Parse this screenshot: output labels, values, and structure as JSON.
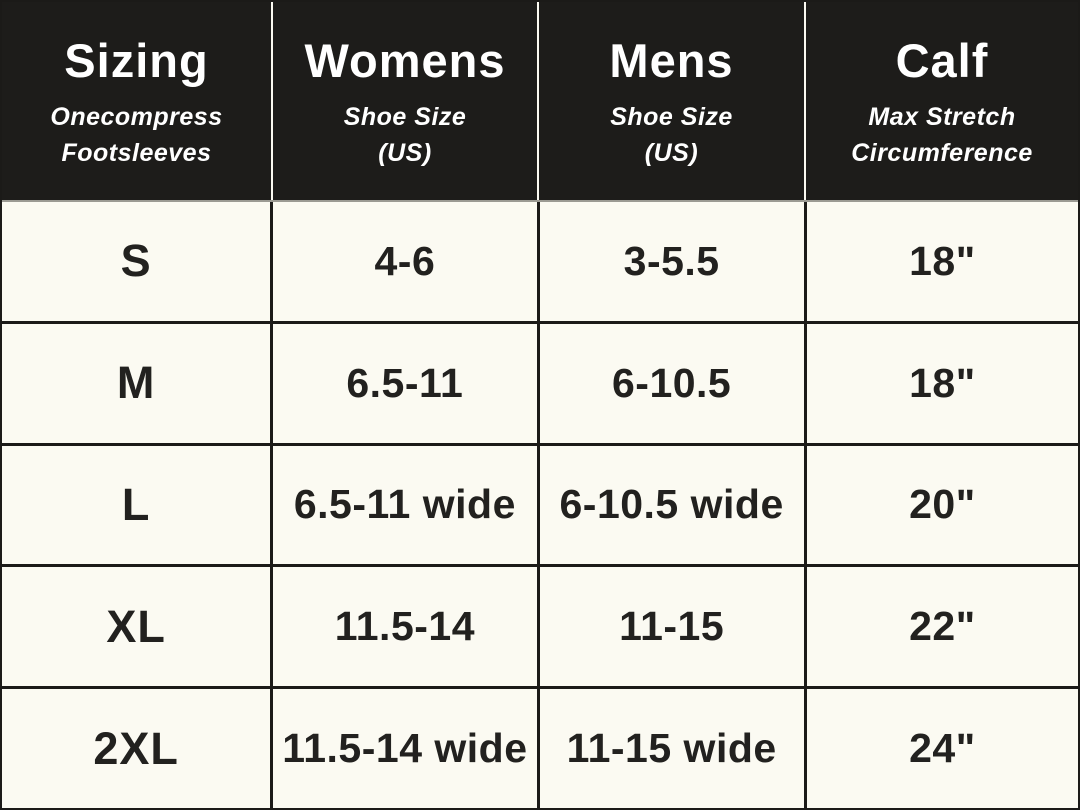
{
  "chart_data": {
    "type": "table",
    "title": "Sizing",
    "columns": [
      {
        "title": "Sizing",
        "subtitle_lines": [
          "Onecompress",
          "Footsleeves"
        ]
      },
      {
        "title": "Womens",
        "subtitle_lines": [
          "Shoe Size",
          "(US)"
        ]
      },
      {
        "title": "Mens",
        "subtitle_lines": [
          "Shoe Size",
          "(US)"
        ]
      },
      {
        "title": "Calf",
        "subtitle_lines": [
          "Max Stretch",
          "Circumference"
        ]
      }
    ],
    "rows": [
      [
        "S",
        "4-6",
        "3-5.5",
        "18\""
      ],
      [
        "M",
        "6.5-11",
        "6-10.5",
        "18\""
      ],
      [
        "L",
        "6.5-11 wide",
        "6-10.5 wide",
        "20\""
      ],
      [
        "XL",
        "11.5-14",
        "11-15",
        "22\""
      ],
      [
        "2XL",
        "11.5-14 wide",
        "11-15 wide",
        "24\""
      ]
    ],
    "layout": {
      "grid": "on",
      "header_position": "top"
    },
    "colors": {
      "header_bg": "#1d1c1a",
      "header_text": "#ffffff",
      "body_bg": "#fbfaf2",
      "body_text": "#22211f",
      "grid_line": "#1b1a18",
      "header_divider": "#9b9a93"
    }
  }
}
